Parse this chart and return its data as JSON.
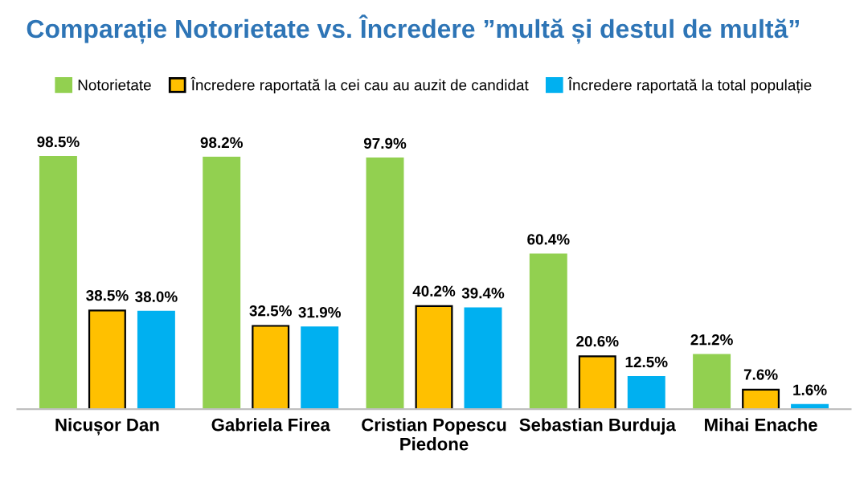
{
  "chart_data": {
    "type": "bar",
    "title": "Comparație Notorietate vs. Încredere ”multă și destul de multă”",
    "categories": [
      "Nicușor Dan",
      "Gabriela Firea",
      "Cristian Popescu\nPiedone",
      "Sebastian Burduja",
      "Mihai Enache"
    ],
    "series": [
      {
        "name": "Notorietate",
        "color": "#92d050",
        "values": [
          98.5,
          98.2,
          97.9,
          60.4,
          21.2
        ],
        "value_labels": [
          "98.5%",
          "98.2%",
          "97.9%",
          "60.4%",
          "21.2%"
        ]
      },
      {
        "name": "Încredere raportată la cei cau au auzit de candidat",
        "color": "#ffc000",
        "values": [
          38.5,
          32.5,
          40.2,
          20.6,
          7.6
        ],
        "value_labels": [
          "38.5%",
          "32.5%",
          "40.2%",
          "20.6%",
          "7.6%"
        ]
      },
      {
        "name": "Încredere raportată la total populație",
        "color": "#00b0f0",
        "values": [
          38.0,
          31.9,
          39.4,
          12.5,
          1.6
        ],
        "value_labels": [
          "38.0%",
          "31.9%",
          "39.4%",
          "12.5%",
          "1.6%"
        ]
      }
    ],
    "legend": "top",
    "grid": false
  }
}
